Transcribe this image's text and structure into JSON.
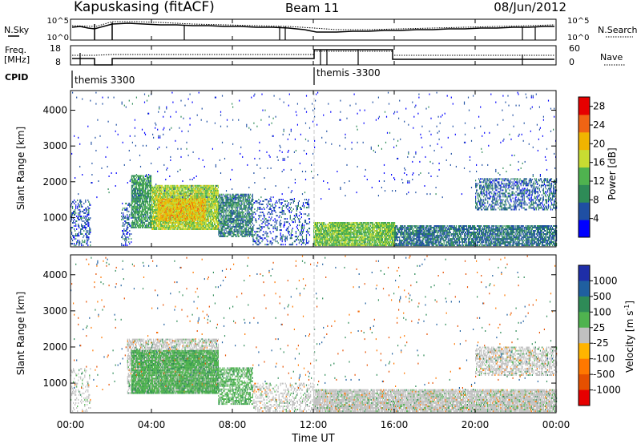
{
  "header": {
    "station": "Kapuskasing (fitACF)",
    "beam": "Beam 11",
    "date": "08/Jun/2012"
  },
  "noise_panel": {
    "left_label": "N.Sky",
    "right_label": "N.Search",
    "ticks": [
      "10^5",
      "10^0"
    ],
    "right_ticks": [
      "10^5",
      "10^0"
    ]
  },
  "freq_panel": {
    "left_label_1": "Freq.",
    "left_label_2": "[MHz]",
    "right_label": "Nave",
    "left_ticks": [
      "18",
      "8"
    ],
    "right_ticks": [
      "60",
      "0"
    ]
  },
  "cpid_panel": {
    "label": "CPID",
    "segments": [
      {
        "name": "themis 3300",
        "start_hour": 0
      },
      {
        "name": "themis -3300",
        "start_hour": 12
      }
    ]
  },
  "x_axis": {
    "label": "Time UT",
    "ticks": [
      "00:00",
      "04:00",
      "08:00",
      "12:00",
      "16:00",
      "20:00",
      "00:00"
    ]
  },
  "power_colorbar": {
    "label": "Power [dB]",
    "ticks": [
      "28",
      "24",
      "20",
      "16",
      "12",
      "8",
      "4"
    ],
    "colors": [
      "#0000ff",
      "#1f4fa3",
      "#2e8b57",
      "#4fb34f",
      "#c8dc32",
      "#f0b400",
      "#f06414",
      "#e60000"
    ]
  },
  "velocity_colorbar": {
    "label_main": "Velocity [m s",
    "label_exp": "-1",
    "label_end": "]",
    "ticks": [
      "1000",
      "500",
      "100",
      "25",
      "-25",
      "-100",
      "-500",
      "-1000"
    ],
    "colors": [
      "#1e2ea8",
      "#1f5fa0",
      "#2e8b57",
      "#4fb34f",
      "#c0c0c0",
      "#ffb400",
      "#ff7800",
      "#e65000",
      "#e60000"
    ]
  },
  "chart_data": [
    {
      "type": "heatmap",
      "title": "Power",
      "xlabel": "Time UT",
      "ylabel": "Slant Range [km]",
      "xlim": [
        0,
        24
      ],
      "ylim": [
        180,
        4550
      ],
      "yticks": [
        1000,
        2000,
        3000,
        4000
      ],
      "colorbar_range": [
        0,
        30
      ],
      "regions": [
        {
          "t0": 0.0,
          "t1": 1.0,
          "r0": 200,
          "r1": 1500,
          "value": 6,
          "density": 0.35
        },
        {
          "t0": 2.5,
          "t1": 3.0,
          "r0": 200,
          "r1": 1400,
          "value": 6,
          "density": 0.3
        },
        {
          "t0": 3.0,
          "t1": 4.0,
          "r0": 700,
          "r1": 2150,
          "value": 11,
          "density": 0.8
        },
        {
          "t0": 4.0,
          "t1": 7.3,
          "r0": 650,
          "r1": 1900,
          "value": 17,
          "density": 0.9
        },
        {
          "t0": 4.3,
          "t1": 6.7,
          "r0": 900,
          "r1": 1500,
          "value": 21,
          "density": 0.85
        },
        {
          "t0": 7.3,
          "t1": 9.0,
          "r0": 450,
          "r1": 1650,
          "value": 9,
          "density": 0.7
        },
        {
          "t0": 9.0,
          "t1": 11.8,
          "r0": 220,
          "r1": 1500,
          "value": 6,
          "density": 0.25
        },
        {
          "t0": 12.0,
          "t1": 16.0,
          "r0": 200,
          "r1": 850,
          "value": 15,
          "density": 0.9
        },
        {
          "t0": 16.0,
          "t1": 24.0,
          "r0": 200,
          "r1": 750,
          "value": 8,
          "density": 0.75
        },
        {
          "t0": 20.0,
          "t1": 24.0,
          "r0": 1200,
          "r1": 2100,
          "value": 7,
          "density": 0.45
        },
        {
          "t0": 0.0,
          "t1": 24.0,
          "r0": 1500,
          "r1": 4500,
          "value": 5,
          "density": 0.015
        }
      ]
    },
    {
      "type": "heatmap",
      "title": "Velocity",
      "xlabel": "Time UT",
      "ylabel": "Slant Range [km]",
      "xlim": [
        0,
        24
      ],
      "ylim": [
        180,
        4550
      ],
      "yticks": [
        1000,
        2000,
        3000,
        4000
      ],
      "colorbar_range": [
        -1000,
        1000
      ],
      "regions": [
        {
          "t0": 0.0,
          "t1": 1.0,
          "r0": 200,
          "r1": 1400,
          "value": 0,
          "density": 0.2
        },
        {
          "t0": 2.8,
          "t1": 7.3,
          "r0": 700,
          "r1": 2200,
          "value": 0,
          "density": 0.6
        },
        {
          "t0": 3.0,
          "t1": 7.3,
          "r0": 700,
          "r1": 1900,
          "value": 60,
          "density": 0.9
        },
        {
          "t0": 7.3,
          "t1": 9.0,
          "r0": 400,
          "r1": 1400,
          "value": 60,
          "density": 0.6
        },
        {
          "t0": 9.0,
          "t1": 12.0,
          "r0": 200,
          "r1": 1000,
          "value": 0,
          "density": 0.3
        },
        {
          "t0": 12.0,
          "t1": 24.0,
          "r0": 200,
          "r1": 800,
          "value": 0,
          "density": 0.85
        },
        {
          "t0": 20.0,
          "t1": 24.0,
          "r0": 1200,
          "r1": 2000,
          "value": 0,
          "density": 0.5
        },
        {
          "t0": 0.0,
          "t1": 24.0,
          "r0": 800,
          "r1": 4500,
          "value": -300,
          "density": 0.012
        }
      ]
    }
  ]
}
